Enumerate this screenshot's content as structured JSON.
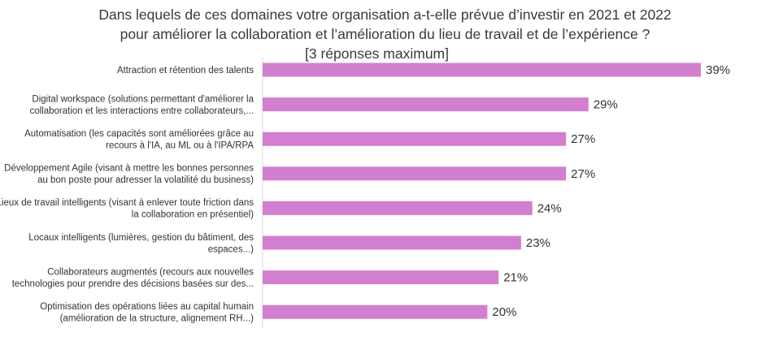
{
  "chart_data": {
    "type": "bar",
    "orientation": "horizontal",
    "title": "Dans lequels de ces domaines votre organisation a-t-elle prévue d’investir en 2021 et 2022",
    "title_line2": "pour améliorer la collaboration et l’amélioration du lieu de travail et de l’expérience ?",
    "subtitle": "[3 réponses maximum]",
    "categories": [
      [
        "Attraction et rétention des talents"
      ],
      [
        "Digital workspace (solutions permettant d'améliorer la",
        "collaboration et les interactions entre collaborateurs,..."
      ],
      [
        "Automatisation (les capacités sont améliorées grâce au",
        "recours à l'IA, au ML ou à l'IPA/RPA"
      ],
      [
        "Développement Agile (visant à mettre les bonnes personnes",
        "au bon poste pour adresser la volatilité du business)"
      ],
      [
        "Lieux de travail intelligents (visant à enlever toute friction dans",
        "la collaboration en présentiel)"
      ],
      [
        "Locaux intelligents (lumières, gestion du bâtiment, des",
        "espaces...)"
      ],
      [
        "Collaborateurs augmentés (recours aux nouvelles",
        "technologies pour prendre des décisions basées sur des..."
      ],
      [
        "Optimisation des opérations liées au capital humain",
        "(amélioration de la structure, alignement RH...)"
      ]
    ],
    "values": [
      39,
      29,
      27,
      27,
      24,
      23,
      21,
      20
    ],
    "value_labels": [
      "39%",
      "29%",
      "27%",
      "27%",
      "24%",
      "23%",
      "21%",
      "20%"
    ],
    "xlim": [
      0,
      39
    ],
    "bar_color": "#d27fcf",
    "grid": false,
    "legend": "none"
  }
}
